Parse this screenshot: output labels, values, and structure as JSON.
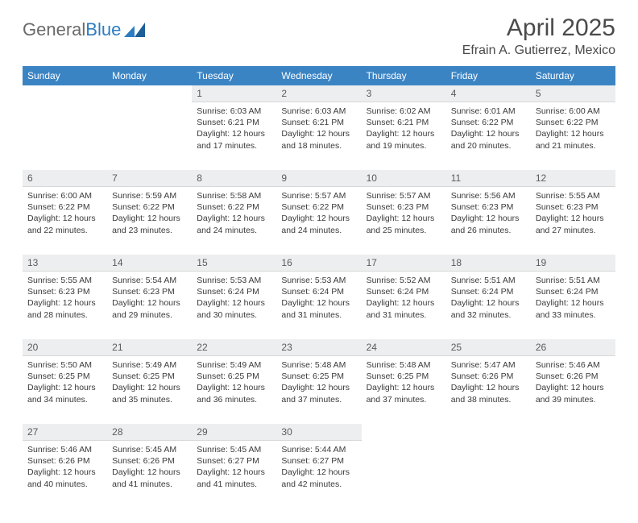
{
  "logo": {
    "word1": "General",
    "word2": "Blue"
  },
  "title": "April 2025",
  "location": "Efrain A. Gutierrez, Mexico",
  "colors": {
    "header_bg": "#3b84c4",
    "header_text": "#ffffff",
    "daynum_bg": "#eceef0",
    "text": "#3a3a3a",
    "logo_gray": "#6a6a6a",
    "logo_blue": "#2e7cc0"
  },
  "typography": {
    "title_fontsize": 30,
    "location_fontsize": 16,
    "dayheader_fontsize": 12,
    "cell_fontsize": 10.5
  },
  "day_headers": [
    "Sunday",
    "Monday",
    "Tuesday",
    "Wednesday",
    "Thursday",
    "Friday",
    "Saturday"
  ],
  "weeks": [
    [
      null,
      null,
      {
        "n": "1",
        "sr": "Sunrise: 6:03 AM",
        "ss": "Sunset: 6:21 PM",
        "d1": "Daylight: 12 hours",
        "d2": "and 17 minutes."
      },
      {
        "n": "2",
        "sr": "Sunrise: 6:03 AM",
        "ss": "Sunset: 6:21 PM",
        "d1": "Daylight: 12 hours",
        "d2": "and 18 minutes."
      },
      {
        "n": "3",
        "sr": "Sunrise: 6:02 AM",
        "ss": "Sunset: 6:21 PM",
        "d1": "Daylight: 12 hours",
        "d2": "and 19 minutes."
      },
      {
        "n": "4",
        "sr": "Sunrise: 6:01 AM",
        "ss": "Sunset: 6:22 PM",
        "d1": "Daylight: 12 hours",
        "d2": "and 20 minutes."
      },
      {
        "n": "5",
        "sr": "Sunrise: 6:00 AM",
        "ss": "Sunset: 6:22 PM",
        "d1": "Daylight: 12 hours",
        "d2": "and 21 minutes."
      }
    ],
    [
      {
        "n": "6",
        "sr": "Sunrise: 6:00 AM",
        "ss": "Sunset: 6:22 PM",
        "d1": "Daylight: 12 hours",
        "d2": "and 22 minutes."
      },
      {
        "n": "7",
        "sr": "Sunrise: 5:59 AM",
        "ss": "Sunset: 6:22 PM",
        "d1": "Daylight: 12 hours",
        "d2": "and 23 minutes."
      },
      {
        "n": "8",
        "sr": "Sunrise: 5:58 AM",
        "ss": "Sunset: 6:22 PM",
        "d1": "Daylight: 12 hours",
        "d2": "and 24 minutes."
      },
      {
        "n": "9",
        "sr": "Sunrise: 5:57 AM",
        "ss": "Sunset: 6:22 PM",
        "d1": "Daylight: 12 hours",
        "d2": "and 24 minutes."
      },
      {
        "n": "10",
        "sr": "Sunrise: 5:57 AM",
        "ss": "Sunset: 6:23 PM",
        "d1": "Daylight: 12 hours",
        "d2": "and 25 minutes."
      },
      {
        "n": "11",
        "sr": "Sunrise: 5:56 AM",
        "ss": "Sunset: 6:23 PM",
        "d1": "Daylight: 12 hours",
        "d2": "and 26 minutes."
      },
      {
        "n": "12",
        "sr": "Sunrise: 5:55 AM",
        "ss": "Sunset: 6:23 PM",
        "d1": "Daylight: 12 hours",
        "d2": "and 27 minutes."
      }
    ],
    [
      {
        "n": "13",
        "sr": "Sunrise: 5:55 AM",
        "ss": "Sunset: 6:23 PM",
        "d1": "Daylight: 12 hours",
        "d2": "and 28 minutes."
      },
      {
        "n": "14",
        "sr": "Sunrise: 5:54 AM",
        "ss": "Sunset: 6:23 PM",
        "d1": "Daylight: 12 hours",
        "d2": "and 29 minutes."
      },
      {
        "n": "15",
        "sr": "Sunrise: 5:53 AM",
        "ss": "Sunset: 6:24 PM",
        "d1": "Daylight: 12 hours",
        "d2": "and 30 minutes."
      },
      {
        "n": "16",
        "sr": "Sunrise: 5:53 AM",
        "ss": "Sunset: 6:24 PM",
        "d1": "Daylight: 12 hours",
        "d2": "and 31 minutes."
      },
      {
        "n": "17",
        "sr": "Sunrise: 5:52 AM",
        "ss": "Sunset: 6:24 PM",
        "d1": "Daylight: 12 hours",
        "d2": "and 31 minutes."
      },
      {
        "n": "18",
        "sr": "Sunrise: 5:51 AM",
        "ss": "Sunset: 6:24 PM",
        "d1": "Daylight: 12 hours",
        "d2": "and 32 minutes."
      },
      {
        "n": "19",
        "sr": "Sunrise: 5:51 AM",
        "ss": "Sunset: 6:24 PM",
        "d1": "Daylight: 12 hours",
        "d2": "and 33 minutes."
      }
    ],
    [
      {
        "n": "20",
        "sr": "Sunrise: 5:50 AM",
        "ss": "Sunset: 6:25 PM",
        "d1": "Daylight: 12 hours",
        "d2": "and 34 minutes."
      },
      {
        "n": "21",
        "sr": "Sunrise: 5:49 AM",
        "ss": "Sunset: 6:25 PM",
        "d1": "Daylight: 12 hours",
        "d2": "and 35 minutes."
      },
      {
        "n": "22",
        "sr": "Sunrise: 5:49 AM",
        "ss": "Sunset: 6:25 PM",
        "d1": "Daylight: 12 hours",
        "d2": "and 36 minutes."
      },
      {
        "n": "23",
        "sr": "Sunrise: 5:48 AM",
        "ss": "Sunset: 6:25 PM",
        "d1": "Daylight: 12 hours",
        "d2": "and 37 minutes."
      },
      {
        "n": "24",
        "sr": "Sunrise: 5:48 AM",
        "ss": "Sunset: 6:25 PM",
        "d1": "Daylight: 12 hours",
        "d2": "and 37 minutes."
      },
      {
        "n": "25",
        "sr": "Sunrise: 5:47 AM",
        "ss": "Sunset: 6:26 PM",
        "d1": "Daylight: 12 hours",
        "d2": "and 38 minutes."
      },
      {
        "n": "26",
        "sr": "Sunrise: 5:46 AM",
        "ss": "Sunset: 6:26 PM",
        "d1": "Daylight: 12 hours",
        "d2": "and 39 minutes."
      }
    ],
    [
      {
        "n": "27",
        "sr": "Sunrise: 5:46 AM",
        "ss": "Sunset: 6:26 PM",
        "d1": "Daylight: 12 hours",
        "d2": "and 40 minutes."
      },
      {
        "n": "28",
        "sr": "Sunrise: 5:45 AM",
        "ss": "Sunset: 6:26 PM",
        "d1": "Daylight: 12 hours",
        "d2": "and 41 minutes."
      },
      {
        "n": "29",
        "sr": "Sunrise: 5:45 AM",
        "ss": "Sunset: 6:27 PM",
        "d1": "Daylight: 12 hours",
        "d2": "and 41 minutes."
      },
      {
        "n": "30",
        "sr": "Sunrise: 5:44 AM",
        "ss": "Sunset: 6:27 PM",
        "d1": "Daylight: 12 hours",
        "d2": "and 42 minutes."
      },
      null,
      null,
      null
    ]
  ]
}
